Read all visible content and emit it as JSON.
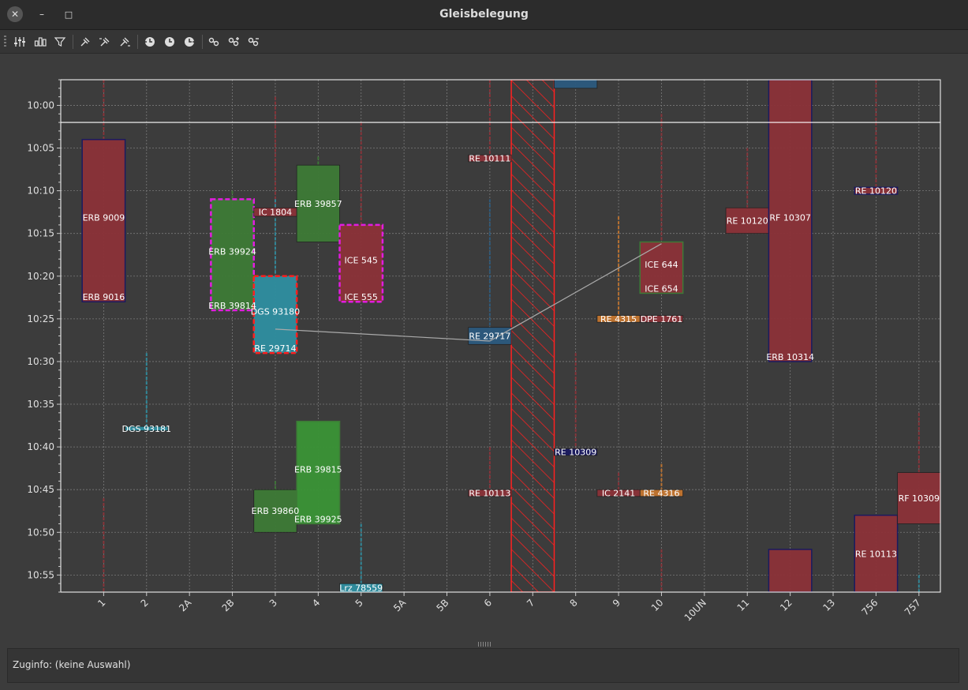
{
  "window": {
    "title": "Gleisbelegung",
    "close_symbol": "✕",
    "minimize_symbol": "–",
    "maximize_symbol": "□"
  },
  "toolbar": {
    "buttons": [
      {
        "icon": "sliders-icon"
      },
      {
        "icon": "bar-chart-icon"
      },
      {
        "icon": "filter-icon"
      },
      {
        "icon": "pin-icon"
      },
      {
        "icon": "pin-left-icon"
      },
      {
        "icon": "pin-right-icon"
      },
      {
        "icon": "clock-back-icon"
      },
      {
        "icon": "clock-icon"
      },
      {
        "icon": "clock-forward-icon"
      },
      {
        "icon": "link-icon"
      },
      {
        "icon": "link-add-icon"
      },
      {
        "icon": "link-remove-icon"
      }
    ]
  },
  "info": {
    "text": "Zuginfo: (keine Auswahl)"
  },
  "chart_data": {
    "type": "gantt",
    "categories": [
      "1",
      "2",
      "2A",
      "2B",
      "3",
      "4",
      "5",
      "5A",
      "5B",
      "6",
      "7",
      "8",
      "9",
      "10",
      "10UN",
      "11",
      "12",
      "13",
      "756",
      "757"
    ],
    "y_range": [
      "09:57",
      "10:57"
    ],
    "y_ticks": [
      "10:00",
      "10:05",
      "10:10",
      "10:15",
      "10:20",
      "10:25",
      "10:30",
      "10:35",
      "10:40",
      "10:45",
      "10:50",
      "10:55"
    ],
    "current_time": "10:02",
    "grid": true,
    "colors": {
      "red": "#8b3238",
      "green": "#3d7a36",
      "bright_green": "#3a9436",
      "teal": "#2e8ea0",
      "blue": "#2b5a7e",
      "orange": "#c4752e",
      "magenta": "#e21ce0",
      "dash_red": "#ff2020",
      "navy": "#1a1a60",
      "hatch": "#ff2020"
    },
    "blocked_track": "7",
    "blocks": [
      {
        "track": "1",
        "start": "10:04",
        "end": "10:23",
        "color": "red",
        "border": "navy",
        "labels": [
          "ERB 9009",
          "ERB 9016"
        ]
      },
      {
        "track": "2",
        "start": "10:37.6",
        "end": "10:38.1",
        "color": "teal",
        "labels": [
          "DGS 93181"
        ]
      },
      {
        "track": "2B",
        "start": "10:11",
        "end": "10:24",
        "color": "green",
        "border": "magenta",
        "labels": [
          "ERB 39924",
          "ERB 39814"
        ]
      },
      {
        "track": "3",
        "start": "10:12",
        "end": "10:13",
        "color": "red",
        "labels": [
          "IC 1804"
        ]
      },
      {
        "track": "3",
        "start": "10:20",
        "end": "10:29",
        "color": "teal",
        "border": "dash_red",
        "labels": [
          "DGS 93180",
          "RE 29714"
        ]
      },
      {
        "track": "3",
        "start": "10:45",
        "end": "10:50",
        "color": "green",
        "labels": [
          "ERB 39860"
        ]
      },
      {
        "track": "4",
        "start": "10:07",
        "end": "10:16",
        "color": "green",
        "labels": [
          "ERB 39857"
        ]
      },
      {
        "track": "4",
        "start": "10:37",
        "end": "10:49",
        "color": "bright_green",
        "border": "green",
        "labels": [
          "ERB 39815",
          "ERB 39925"
        ]
      },
      {
        "track": "5",
        "start": "10:14",
        "end": "10:23",
        "color": "red",
        "border": "magenta",
        "labels": [
          "ICE 545",
          "ICE 555"
        ]
      },
      {
        "track": "5",
        "start": "10:56",
        "end": "10:57",
        "color": "teal",
        "labels": [
          "Lrz 78559"
        ]
      },
      {
        "track": "6",
        "start": "10:05.8",
        "end": "10:06.6",
        "color": "red",
        "labels": [
          "RE 10111"
        ]
      },
      {
        "track": "6",
        "start": "10:26",
        "end": "10:28",
        "color": "blue",
        "labels": [
          "RE 29717"
        ]
      },
      {
        "track": "6",
        "start": "10:45",
        "end": "10:45.8",
        "color": "red",
        "labels": [
          "RE 10113"
        ]
      },
      {
        "track": "8",
        "start": "09:57",
        "end": "09:58",
        "color": "blue",
        "labels": []
      },
      {
        "track": "8",
        "start": "10:40.2",
        "end": "10:41",
        "color": "navy",
        "labels": [
          "RE 10309"
        ]
      },
      {
        "track": "9",
        "start": "10:24.6",
        "end": "10:25.4",
        "color": "orange",
        "labels": [
          "RE 4315"
        ]
      },
      {
        "track": "9",
        "start": "10:45",
        "end": "10:45.8",
        "color": "red",
        "labels": [
          "IC 2141"
        ]
      },
      {
        "track": "10",
        "start": "10:16",
        "end": "10:22",
        "color": "red",
        "border": "green",
        "labels": [
          "ICE 644",
          "ICE 654"
        ]
      },
      {
        "track": "10",
        "start": "10:24.6",
        "end": "10:25.4",
        "color": "red",
        "labels": [
          "DPE 1761"
        ]
      },
      {
        "track": "10",
        "start": "10:45",
        "end": "10:45.8",
        "color": "orange",
        "labels": [
          "RE 4316"
        ]
      },
      {
        "track": "11",
        "start": "10:12",
        "end": "10:15",
        "color": "red",
        "labels": [
          "RE 10120"
        ]
      },
      {
        "track": "12",
        "start": "09:57",
        "end": "10:30",
        "color": "red",
        "border": "navy",
        "labels": [
          "RF 10307",
          "ERB 10314"
        ]
      },
      {
        "track": "12",
        "start": "10:52",
        "end": "10:57",
        "color": "red",
        "border": "navy",
        "labels": []
      },
      {
        "track": "756",
        "start": "10:09.6",
        "end": "10:10.4",
        "color": "red",
        "border": "navy",
        "labels": [
          "RE 10120"
        ]
      },
      {
        "track": "756",
        "start": "10:48",
        "end": "10:57",
        "color": "red",
        "border": "navy",
        "labels": [
          "RE 10113"
        ]
      },
      {
        "track": "757",
        "start": "10:43",
        "end": "10:49",
        "color": "red",
        "labels": [
          "RF 10309"
        ]
      }
    ],
    "whiskers": [
      {
        "track": "1",
        "from": "09:57",
        "to": "10:04",
        "color": "red"
      },
      {
        "track": "1",
        "from": "10:46",
        "to": "10:57",
        "color": "red"
      },
      {
        "track": "2",
        "from": "10:29",
        "to": "10:37.6",
        "color": "teal"
      },
      {
        "track": "2B",
        "from": "10:10",
        "to": "10:11",
        "color": "green"
      },
      {
        "track": "3",
        "from": "09:59",
        "to": "10:12",
        "color": "red"
      },
      {
        "track": "3",
        "from": "10:11",
        "to": "10:20",
        "color": "teal"
      },
      {
        "track": "3",
        "from": "10:44",
        "to": "10:45",
        "color": "green"
      },
      {
        "track": "4",
        "from": "10:06",
        "to": "10:07",
        "color": "green"
      },
      {
        "track": "5",
        "from": "10:02",
        "to": "10:14",
        "color": "red"
      },
      {
        "track": "5",
        "from": "10:49",
        "to": "10:56",
        "color": "teal"
      },
      {
        "track": "6",
        "from": "09:57",
        "to": "10:05.8",
        "color": "red"
      },
      {
        "track": "6",
        "from": "10:11",
        "to": "10:26",
        "color": "blue"
      },
      {
        "track": "6",
        "from": "10:40",
        "to": "10:45",
        "color": "red"
      },
      {
        "track": "8",
        "from": "10:29",
        "to": "10:40.2",
        "color": "red"
      },
      {
        "track": "9",
        "from": "10:13",
        "to": "10:24.6",
        "color": "orange"
      },
      {
        "track": "9",
        "from": "10:43",
        "to": "10:45",
        "color": "red"
      },
      {
        "track": "10",
        "from": "10:01",
        "to": "10:16",
        "color": "red"
      },
      {
        "track": "10",
        "from": "10:42",
        "to": "10:45",
        "color": "orange"
      },
      {
        "track": "10",
        "from": "10:52",
        "to": "10:57",
        "color": "red"
      },
      {
        "track": "11",
        "from": "10:05",
        "to": "10:12",
        "color": "red"
      },
      {
        "track": "756",
        "from": "09:57",
        "to": "10:09.6",
        "color": "red"
      },
      {
        "track": "757",
        "from": "10:36",
        "to": "10:43",
        "color": "red"
      },
      {
        "track": "757",
        "from": "10:55",
        "to": "10:57",
        "color": "teal"
      }
    ],
    "connections": [
      {
        "from_track": "3",
        "from_time": "10:26.2",
        "to_track": "6",
        "to_time": "10:27.6"
      },
      {
        "from_track": "6",
        "from_time": "10:27.6",
        "to_track": "10",
        "to_time": "10:16.2"
      }
    ]
  }
}
